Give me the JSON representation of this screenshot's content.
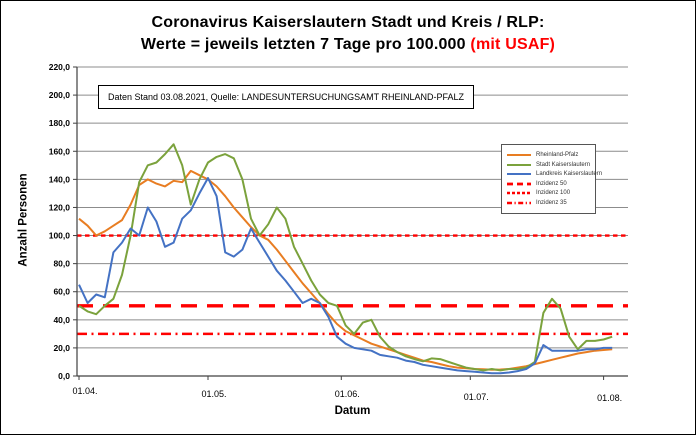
{
  "chart_data": {
    "type": "line",
    "title_line1": "Coronavirus Kaiserslautern Stadt und Kreis / RLP:",
    "title_line2": "Werte = jeweils letzten 7 Tage pro 100.000",
    "title_line2_highlight": "(mit USAF)",
    "title_highlight_color": "#FF0000",
    "annotation": "Daten Stand 03.08.2021, Quelle: LANDESUNTERSUCHUNGSAMT RHEINLAND-PFALZ",
    "xlabel": "Datum",
    "ylabel": "Anzahl Personen",
    "ylim": [
      0,
      220
    ],
    "ytick_step": 20,
    "ytick_labels": [
      "0,0",
      "20,0",
      "40,0",
      "60,0",
      "80,0",
      "100,0",
      "120,0",
      "140,0",
      "160,0",
      "180,0",
      "200,0",
      "220,0"
    ],
    "xticks": {
      "labels": [
        "01.04.",
        "01.05.",
        "01.06.",
        "01.07.",
        "01.08."
      ],
      "days": [
        0,
        30,
        61,
        91,
        122
      ]
    },
    "grid": "horizontal-only",
    "legend_position": "center-right",
    "x_unit": "days since 01.04.2021, data until 03.08.2021",
    "grid_color": "#8c8c8c",
    "axis_color": "#404040",
    "thresholds": [
      {
        "label": "Inzidenz 50",
        "value": 50,
        "style": "long-dash",
        "color": "#FF0000"
      },
      {
        "label": "Inzidenz 100",
        "value": 100,
        "style": "short-dash",
        "color": "#FF0000"
      },
      {
        "label": "Inzidenz 35",
        "value": 35,
        "y_on_chart": 30,
        "style": "dash-dot",
        "color": "#FF0000"
      }
    ],
    "series": [
      {
        "name": "Rheinland-Pfalz",
        "color": "#E87D22",
        "x": [
          0,
          2,
          4,
          6,
          8,
          10,
          12,
          14,
          16,
          18,
          20,
          22,
          24,
          26,
          28,
          30,
          32,
          34,
          36,
          38,
          40,
          42,
          44,
          46,
          48,
          50,
          52,
          54,
          56,
          58,
          60,
          62,
          64,
          66,
          68,
          70,
          72,
          74,
          76,
          78,
          80,
          82,
          84,
          86,
          88,
          90,
          92,
          94,
          96,
          98,
          100,
          102,
          104,
          106,
          108,
          110,
          112,
          114,
          116,
          118,
          120,
          122,
          124
        ],
        "y": [
          112,
          107,
          100,
          103,
          107,
          111,
          122,
          136,
          140,
          137,
          135,
          139,
          138,
          146,
          143,
          140,
          135,
          128,
          120,
          113,
          106,
          100,
          97,
          90,
          82,
          74,
          66,
          59,
          52,
          44,
          37,
          32,
          29,
          26,
          23,
          21,
          19,
          17,
          15,
          13,
          11,
          10,
          8.5,
          7,
          6,
          5.5,
          5,
          4.8,
          4.5,
          4.6,
          5,
          6,
          7,
          8.5,
          10,
          11.5,
          13,
          14.5,
          16,
          17,
          18,
          18.5,
          19
        ]
      },
      {
        "name": "Stadt Kaiserslautern",
        "color": "#7BA23C",
        "x": [
          0,
          2,
          4,
          6,
          8,
          10,
          12,
          14,
          16,
          18,
          20,
          22,
          24,
          26,
          28,
          30,
          32,
          34,
          36,
          38,
          40,
          42,
          44,
          46,
          48,
          50,
          52,
          54,
          56,
          58,
          60,
          62,
          64,
          66,
          68,
          70,
          72,
          74,
          76,
          78,
          80,
          82,
          84,
          86,
          88,
          90,
          92,
          94,
          96,
          98,
          100,
          102,
          104,
          106,
          108,
          110,
          112,
          114,
          116,
          118,
          120,
          122,
          124
        ],
        "y": [
          50,
          46,
          44,
          50,
          55,
          72,
          100,
          138,
          150,
          152,
          158,
          165,
          150,
          122,
          140,
          152,
          156,
          158,
          155,
          140,
          112,
          100,
          108,
          120,
          112,
          92,
          80,
          68,
          58,
          52,
          50,
          36,
          30,
          38,
          40,
          28,
          21,
          17,
          14,
          12,
          10.5,
          12.5,
          12,
          10,
          8,
          6,
          5,
          4,
          5,
          4,
          5,
          5,
          6,
          10,
          45,
          55,
          48,
          28,
          19,
          25,
          25,
          26,
          28
        ]
      },
      {
        "name": "Landkreis Kaiserslautern",
        "color": "#4472C4",
        "x": [
          0,
          2,
          4,
          6,
          8,
          10,
          12,
          14,
          16,
          18,
          20,
          22,
          24,
          26,
          28,
          30,
          32,
          34,
          36,
          38,
          40,
          42,
          44,
          46,
          48,
          50,
          52,
          54,
          56,
          58,
          60,
          62,
          64,
          66,
          68,
          70,
          72,
          74,
          76,
          78,
          80,
          82,
          84,
          86,
          88,
          90,
          92,
          94,
          96,
          98,
          100,
          102,
          104,
          106,
          108,
          110,
          112,
          114,
          116,
          118,
          120,
          122,
          124
        ],
        "y": [
          65,
          52,
          58,
          56,
          88,
          95,
          105,
          100,
          120,
          110,
          92,
          95,
          112,
          118,
          130,
          141,
          128,
          88,
          85,
          90,
          105,
          95,
          85,
          75,
          68,
          60,
          52,
          55,
          52,
          42,
          28,
          23,
          20,
          19,
          18,
          15,
          14,
          13,
          11,
          10,
          8,
          7,
          6,
          5,
          4,
          3.5,
          3,
          2.5,
          2,
          2,
          2.5,
          3.5,
          5,
          9,
          22,
          18,
          18,
          18,
          18,
          19,
          19,
          20,
          20
        ]
      }
    ],
    "legend_entries": [
      {
        "label": "Rheinland-Pfalz",
        "color": "#E87D22",
        "style": "solid"
      },
      {
        "label": "Stadt Kaiserslautern",
        "color": "#7BA23C",
        "style": "solid"
      },
      {
        "label": "Landkreis Kaiserslautern",
        "color": "#4472C4",
        "style": "solid"
      },
      {
        "label": "Inzidenz 50",
        "color": "#FF0000",
        "style": "long-dash"
      },
      {
        "label": "Inzidenz 100",
        "color": "#FF0000",
        "style": "short-dash"
      },
      {
        "label": "Inzidenz 35",
        "color": "#FF0000",
        "style": "dash-dot"
      }
    ]
  }
}
